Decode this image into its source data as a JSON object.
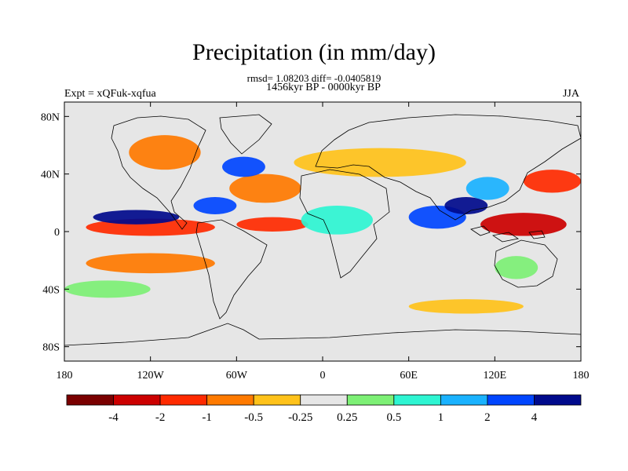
{
  "chart_data": {
    "type": "heatmap",
    "title": "Precipitation (in mm/day)",
    "stats": {
      "rmsd_line": "rmsd= 1.08203  diff= -0.0405819",
      "period": "1456kyr BP - 0000kyr BP"
    },
    "left_label": "Expt = xQFuk-xqfua",
    "right_label": "JJA",
    "x_ticks": [
      "180",
      "120W",
      "60W",
      "0",
      "60E",
      "120E",
      "180"
    ],
    "x_tick_values": [
      -180,
      -120,
      -60,
      0,
      60,
      120,
      180
    ],
    "y_ticks": [
      "80N",
      "40N",
      "0",
      "40S",
      "80S"
    ],
    "y_tick_values": [
      80,
      40,
      0,
      -40,
      -80
    ],
    "xlim": [
      -180,
      180
    ],
    "ylim": [
      -90,
      90
    ],
    "colorbar": {
      "colors": [
        "#7a0000",
        "#cc0000",
        "#ff2a00",
        "#ff7a00",
        "#ffc21a",
        "#e6e6e6",
        "#7df075",
        "#2ef5d2",
        "#1ab2ff",
        "#0045ff",
        "#000a8c"
      ],
      "labels": [
        "-4",
        "-2",
        "-1",
        "-0.5",
        "-0.25",
        "0.25",
        "0.5",
        "1",
        "2",
        "4"
      ]
    },
    "anomaly_regions": [
      {
        "name": "eastern-pacific-itcz-dry",
        "lon": -120,
        "lat": 3,
        "rx": 45,
        "ry": 6,
        "level": 2
      },
      {
        "name": "atlantic-itcz-dry",
        "lon": -35,
        "lat": 5,
        "rx": 25,
        "ry": 5,
        "level": 2
      },
      {
        "name": "south-pacific-dry",
        "lon": -120,
        "lat": -22,
        "rx": 45,
        "ry": 7,
        "level": 3
      },
      {
        "name": "mid-atlantic-dry",
        "lon": -40,
        "lat": 30,
        "rx": 25,
        "ry": 10,
        "level": 3
      },
      {
        "name": "eurasia-dry",
        "lon": 40,
        "lat": 48,
        "rx": 60,
        "ry": 10,
        "level": 4
      },
      {
        "name": "western-pacific-dry",
        "lon": 140,
        "lat": 5,
        "rx": 30,
        "ry": 8,
        "level": 1
      },
      {
        "name": "northwest-pacific-dry",
        "lon": 160,
        "lat": 35,
        "rx": 20,
        "ry": 8,
        "level": 2
      },
      {
        "name": "north-america-dry",
        "lon": -110,
        "lat": 55,
        "rx": 25,
        "ry": 12,
        "level": 3
      },
      {
        "name": "southern-ocean-dry",
        "lon": 100,
        "lat": -52,
        "rx": 40,
        "ry": 5,
        "level": 4
      },
      {
        "name": "east-pacific-wet",
        "lon": -130,
        "lat": 10,
        "rx": 30,
        "ry": 5,
        "level": 10
      },
      {
        "name": "caribbean-wet",
        "lon": -75,
        "lat": 18,
        "rx": 15,
        "ry": 6,
        "level": 9
      },
      {
        "name": "indian-ocean-wet",
        "lon": 80,
        "lat": 10,
        "rx": 20,
        "ry": 8,
        "level": 9
      },
      {
        "name": "bay-of-bengal-wet",
        "lon": 100,
        "lat": 18,
        "rx": 15,
        "ry": 6,
        "level": 10
      },
      {
        "name": "china-wet",
        "lon": 115,
        "lat": 30,
        "rx": 15,
        "ry": 8,
        "level": 8
      },
      {
        "name": "north-atlantic-wet",
        "lon": -55,
        "lat": 45,
        "rx": 15,
        "ry": 7,
        "level": 9
      },
      {
        "name": "africa-wet",
        "lon": 10,
        "lat": 8,
        "rx": 25,
        "ry": 10,
        "level": 7
      },
      {
        "name": "south-pacific-wet",
        "lon": -150,
        "lat": -40,
        "rx": 30,
        "ry": 6,
        "level": 6
      },
      {
        "name": "australia-wet",
        "lon": 135,
        "lat": -25,
        "rx": 15,
        "ry": 8,
        "level": 6
      }
    ]
  }
}
